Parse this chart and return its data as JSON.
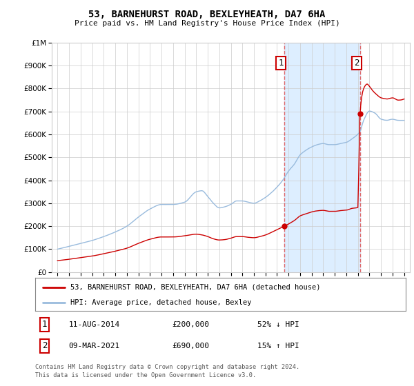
{
  "title": "53, BARNEHURST ROAD, BEXLEYHEATH, DA7 6HA",
  "subtitle": "Price paid vs. HM Land Registry's House Price Index (HPI)",
  "legend_line1": "53, BARNEHURST ROAD, BEXLEYHEATH, DA7 6HA (detached house)",
  "legend_line2": "HPI: Average price, detached house, Bexley",
  "footer1": "Contains HM Land Registry data © Crown copyright and database right 2024.",
  "footer2": "This data is licensed under the Open Government Licence v3.0.",
  "transaction1_date": "11-AUG-2014",
  "transaction1_price": "£200,000",
  "transaction1_hpi": "52% ↓ HPI",
  "transaction1_year": 2014.62,
  "transaction1_price_val": 200000,
  "transaction2_date": "09-MAR-2021",
  "transaction2_price": "£690,000",
  "transaction2_hpi": "15% ↑ HPI",
  "transaction2_year": 2021.18,
  "transaction2_price_val": 690000,
  "line_color_red": "#cc0000",
  "line_color_blue": "#99bbdd",
  "shade_color": "#ddeeff",
  "dashed_color": "#dd4444",
  "background_color": "#ffffff",
  "grid_color": "#cccccc",
  "ylim": [
    0,
    1000000
  ],
  "xlim_start": 1994.5,
  "xlim_end": 2025.5
}
